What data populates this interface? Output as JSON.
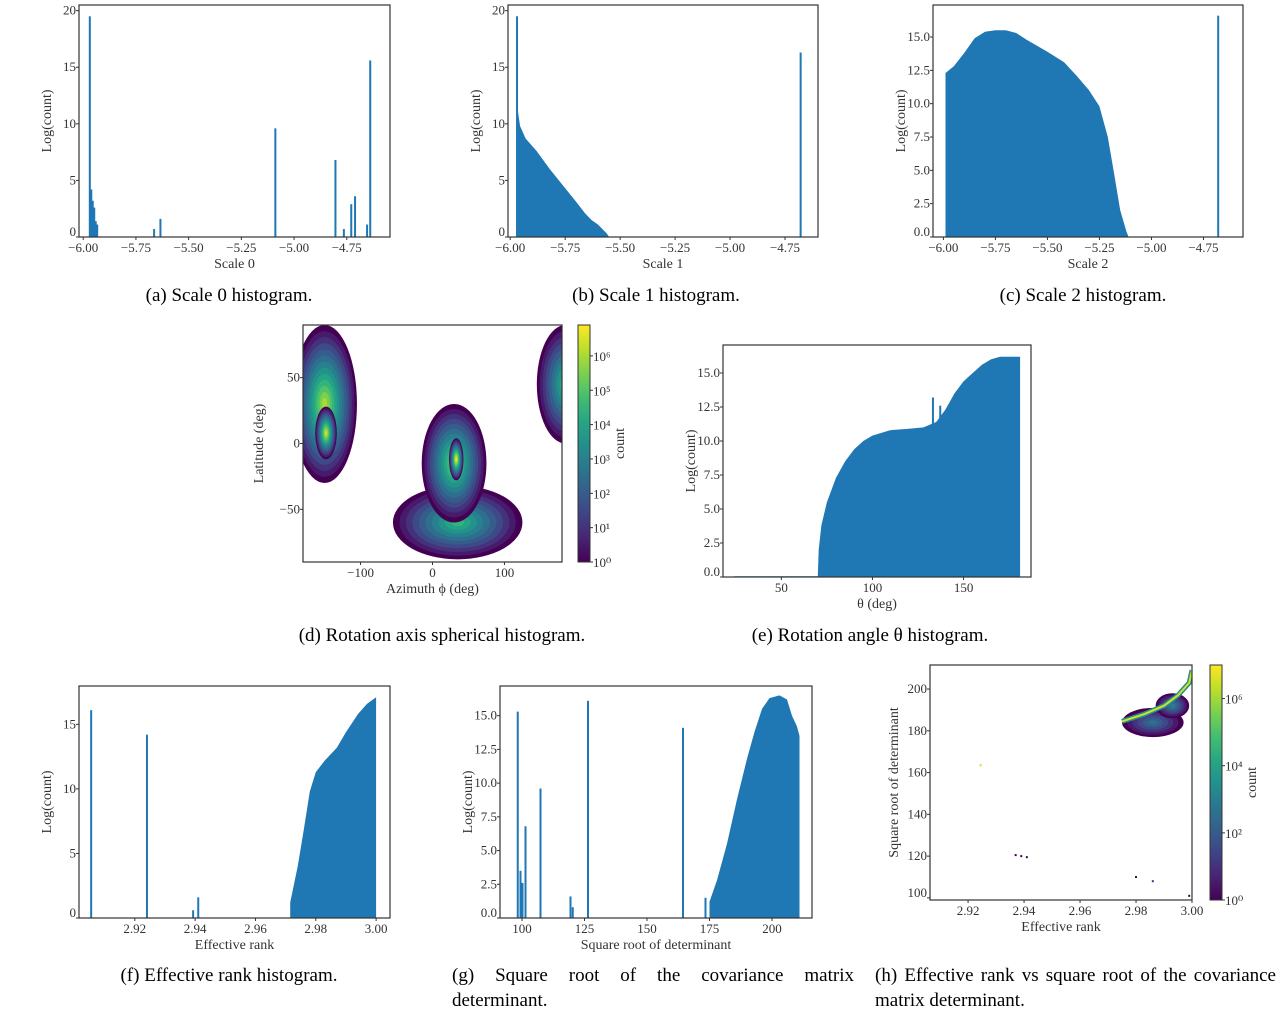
{
  "captions": {
    "a": "(a) Scale 0 histogram.",
    "b": "(b) Scale 1 histogram.",
    "c": "(c) Scale 2 histogram.",
    "d": "(d) Rotation axis spherical histogram.",
    "e": "(e) Rotation angle θ histogram.",
    "f": "(f) Effective rank histogram.",
    "g": "(g) Square root of the covariance matrix determinant.",
    "h": "(h) Effective rank vs square root of the covariance matrix determinant."
  },
  "colors": {
    "bar": "#1f77b4",
    "axis": "#333333",
    "colormap": "viridis"
  },
  "chart_data": [
    {
      "id": "a",
      "type": "bar",
      "xlabel": "Scale 0",
      "ylabel": "Log(count)",
      "xlim": [
        -6.02,
        -4.545
      ],
      "ylim": [
        0,
        20.5
      ],
      "xticks": [
        -6.0,
        -5.75,
        -5.5,
        -5.25,
        -5.0,
        -4.75
      ],
      "xtick_labels": [
        "−6.00",
        "−5.75",
        "−5.50",
        "−5.25",
        "−5.00",
        "−4.75"
      ],
      "yticks": [
        0,
        5,
        10,
        15,
        20
      ],
      "ytick_labels": [
        "0",
        "5",
        "10",
        "15",
        "20"
      ],
      "bar_width": 0.007,
      "bars": [
        [
          -5.97,
          19.5
        ],
        [
          -5.963,
          4.2
        ],
        [
          -5.956,
          3.2
        ],
        [
          -5.949,
          2.6
        ],
        [
          -5.942,
          1.4
        ],
        [
          -5.935,
          1.1
        ],
        [
          -5.665,
          0.7
        ],
        [
          -5.635,
          1.6
        ],
        [
          -5.09,
          9.6
        ],
        [
          -4.805,
          6.8
        ],
        [
          -4.765,
          0.7
        ],
        [
          -4.73,
          2.9
        ],
        [
          -4.712,
          3.6
        ],
        [
          -4.655,
          1.1
        ],
        [
          -4.64,
          15.6
        ]
      ]
    },
    {
      "id": "b",
      "type": "bar",
      "xlabel": "Scale 1",
      "ylabel": "Log(count)",
      "xlim": [
        -6.01,
        -4.6
      ],
      "ylim": [
        0,
        20.5
      ],
      "xticks": [
        -6.0,
        -5.75,
        -5.5,
        -5.25,
        -5.0,
        -4.75
      ],
      "xtick_labels": [
        "−6.00",
        "−5.75",
        "−5.50",
        "−5.25",
        "−5.00",
        "−4.75"
      ],
      "yticks": [
        0,
        5,
        10,
        15,
        20
      ],
      "ytick_labels": [
        "0",
        "5",
        "10",
        "15",
        "20"
      ],
      "bar_width": 0.007,
      "bars": [
        [
          -5.97,
          19.5
        ],
        [
          -4.68,
          16.3
        ]
      ],
      "area": [
        [
          -5.965,
          0
        ],
        [
          -5.965,
          11.1
        ],
        [
          -5.955,
          9.8
        ],
        [
          -5.93,
          8.7
        ],
        [
          -5.88,
          7.6
        ],
        [
          -5.82,
          6.0
        ],
        [
          -5.75,
          4.3
        ],
        [
          -5.7,
          3.1
        ],
        [
          -5.66,
          2.1
        ],
        [
          -5.63,
          1.5
        ],
        [
          -5.6,
          1.1
        ],
        [
          -5.575,
          0.6
        ],
        [
          -5.56,
          0.3
        ],
        [
          -5.55,
          0
        ]
      ]
    },
    {
      "id": "c",
      "type": "bar",
      "xlabel": "Scale 2",
      "ylabel": "Log(count)",
      "xlim": [
        -6.05,
        -4.56
      ],
      "ylim": [
        0,
        17.4
      ],
      "xticks": [
        -6.0,
        -5.75,
        -5.5,
        -5.25,
        -5.0,
        -4.75
      ],
      "xtick_labels": [
        "−6.00",
        "−5.75",
        "−5.50",
        "−5.25",
        "−5.00",
        "−4.75"
      ],
      "yticks": [
        0,
        2.5,
        5,
        7.5,
        10,
        12.5,
        15
      ],
      "ytick_labels": [
        "0.0",
        "2.5",
        "5.0",
        "7.5",
        "10.0",
        "12.5",
        "15.0"
      ],
      "bar_width": 0.008,
      "bars": [
        [
          -4.68,
          16.6
        ]
      ],
      "area": [
        [
          -5.99,
          0
        ],
        [
          -5.99,
          12.3
        ],
        [
          -5.95,
          12.8
        ],
        [
          -5.9,
          13.8
        ],
        [
          -5.85,
          14.9
        ],
        [
          -5.8,
          15.4
        ],
        [
          -5.75,
          15.5
        ],
        [
          -5.7,
          15.5
        ],
        [
          -5.65,
          15.3
        ],
        [
          -5.6,
          14.8
        ],
        [
          -5.5,
          13.9
        ],
        [
          -5.42,
          13.1
        ],
        [
          -5.36,
          12.1
        ],
        [
          -5.3,
          11.0
        ],
        [
          -5.25,
          9.8
        ],
        [
          -5.21,
          7.5
        ],
        [
          -5.18,
          4.8
        ],
        [
          -5.15,
          2.0
        ],
        [
          -5.12,
          0.4
        ],
        [
          -5.11,
          0
        ]
      ]
    },
    {
      "id": "d",
      "type": "heatmap",
      "xlabel": "Azimuth ϕ (deg)",
      "ylabel": "Latitude (deg)",
      "xlim": [
        -180,
        180
      ],
      "ylim": [
        -90,
        90
      ],
      "xticks": [
        -100,
        0,
        100
      ],
      "xtick_labels": [
        "−100",
        "0",
        "100"
      ],
      "yticks": [
        -50,
        0,
        50
      ],
      "ytick_labels": [
        "−50",
        "0",
        "50"
      ],
      "colorbar": {
        "label": "count",
        "scale": "log",
        "lim_log10": [
          0,
          6.9
        ],
        "ticks_log10": [
          0,
          1,
          2,
          3,
          4,
          5,
          6
        ],
        "tick_labels": [
          "10⁰",
          "10¹",
          "10²",
          "10³",
          "10⁴",
          "10⁵",
          "10⁶"
        ]
      },
      "regions": [
        {
          "cx": -150,
          "cy": 30,
          "rx": 45,
          "ry": 60,
          "peak_log10": 6.0
        },
        {
          "cx": -148,
          "cy": 8,
          "rx": 15,
          "ry": 20,
          "peak_log10": 6.4
        },
        {
          "cx": 35,
          "cy": -60,
          "rx": 90,
          "ry": 28,
          "peak_log10": 4.5
        },
        {
          "cx": 30,
          "cy": -15,
          "rx": 45,
          "ry": 45,
          "peak_log10": 5.5
        },
        {
          "cx": 33,
          "cy": -12,
          "rx": 10,
          "ry": 16,
          "peak_log10": 6.6
        },
        {
          "cx": 185,
          "cy": 45,
          "rx": 40,
          "ry": 45,
          "peak_log10": 4.5
        }
      ]
    },
    {
      "id": "e",
      "type": "bar",
      "xlabel": "θ (deg)",
      "ylabel": "Log(count)",
      "xlim": [
        18,
        187
      ],
      "ylim": [
        0,
        17.06
      ],
      "xticks": [
        50,
        100,
        150
      ],
      "xtick_labels": [
        "50",
        "100",
        "150"
      ],
      "yticks": [
        0,
        2.5,
        5,
        7.5,
        10,
        12.5,
        15
      ],
      "ytick_labels": [
        "0.0",
        "2.5",
        "5.0",
        "7.5",
        "10.0",
        "12.5",
        "15.0"
      ],
      "bar_width": 0.7,
      "bars": [
        [
          133,
          13.2
        ],
        [
          137,
          12.6
        ]
      ],
      "area": [
        [
          24,
          0
        ],
        [
          24,
          0.05
        ],
        [
          70,
          0.05
        ],
        [
          70.5,
          2.0
        ],
        [
          72,
          3.8
        ],
        [
          75,
          5.5
        ],
        [
          80,
          7.3
        ],
        [
          85,
          8.5
        ],
        [
          90,
          9.4
        ],
        [
          95,
          10.0
        ],
        [
          100,
          10.4
        ],
        [
          110,
          10.8
        ],
        [
          120,
          10.9
        ],
        [
          128,
          11.0
        ],
        [
          135,
          11.4
        ],
        [
          140,
          12.3
        ],
        [
          145,
          13.5
        ],
        [
          150,
          14.4
        ],
        [
          155,
          15.0
        ],
        [
          160,
          15.6
        ],
        [
          165,
          16.0
        ],
        [
          170,
          16.2
        ],
        [
          180,
          16.2
        ],
        [
          181,
          16.2
        ],
        [
          181,
          0
        ]
      ]
    },
    {
      "id": "f",
      "type": "bar",
      "xlabel": "Effective rank",
      "ylabel": "Log(count)",
      "xlim": [
        2.9015,
        3.0046
      ],
      "ylim": [
        0,
        17.97
      ],
      "xticks": [
        2.92,
        2.94,
        2.96,
        2.98,
        3.0
      ],
      "xtick_labels": [
        "2.92",
        "2.94",
        "2.96",
        "2.98",
        "3.00"
      ],
      "yticks": [
        0,
        5,
        10,
        15
      ],
      "ytick_labels": [
        "0",
        "5",
        "10",
        "15"
      ],
      "bar_width": 0.0006,
      "bars": [
        [
          2.9055,
          16.1
        ],
        [
          2.924,
          14.2
        ],
        [
          2.9393,
          0.6
        ],
        [
          2.941,
          1.6
        ]
      ],
      "area": [
        [
          2.9715,
          0
        ],
        [
          2.9715,
          1.2
        ],
        [
          2.974,
          4.0
        ],
        [
          2.976,
          6.8
        ],
        [
          2.978,
          9.8
        ],
        [
          2.98,
          11.3
        ],
        [
          2.983,
          12.2
        ],
        [
          2.987,
          13.2
        ],
        [
          2.99,
          14.4
        ],
        [
          2.994,
          15.8
        ],
        [
          2.997,
          16.6
        ],
        [
          3.0,
          17.1
        ],
        [
          3.0,
          0
        ]
      ]
    },
    {
      "id": "g",
      "type": "bar",
      "xlabel": "Square root of determinant",
      "ylabel": "Log(count)",
      "xlim": [
        91.2,
        216
      ],
      "ylim": [
        0,
        17.2
      ],
      "xticks": [
        100,
        125,
        150,
        175,
        200
      ],
      "xtick_labels": [
        "100",
        "125",
        "150",
        "175",
        "200"
      ],
      "yticks": [
        0,
        2.5,
        5,
        7.5,
        10,
        12.5,
        15
      ],
      "ytick_labels": [
        "0.0",
        "2.5",
        "5.0",
        "7.5",
        "10.0",
        "12.5",
        "15.0"
      ],
      "bar_width": 0.6,
      "bars": [
        [
          98.2,
          15.3
        ],
        [
          99.3,
          3.5
        ],
        [
          100.1,
          2.6
        ],
        [
          101.3,
          6.8
        ],
        [
          107.3,
          9.6
        ],
        [
          119.3,
          1.6
        ],
        [
          120.2,
          0.8
        ],
        [
          126.3,
          16.1
        ],
        [
          164.3,
          14.1
        ],
        [
          173.3,
          1.5
        ]
      ],
      "area": [
        [
          175,
          0
        ],
        [
          175,
          1.2
        ],
        [
          178,
          2.8
        ],
        [
          182,
          5.5
        ],
        [
          186,
          8.8
        ],
        [
          190,
          11.8
        ],
        [
          193,
          13.8
        ],
        [
          196,
          15.5
        ],
        [
          199,
          16.3
        ],
        [
          203,
          16.5
        ],
        [
          206,
          16.2
        ],
        [
          208,
          15.0
        ],
        [
          210,
          14.2
        ],
        [
          211,
          13.5
        ],
        [
          211,
          0
        ]
      ]
    },
    {
      "id": "h",
      "type": "heatmap",
      "xlabel": "Effective rank",
      "ylabel": "Square root of determinant",
      "xlim": [
        2.9064,
        3.0
      ],
      "ylim": [
        99,
        211.5
      ],
      "xticks": [
        2.92,
        2.94,
        2.96,
        2.98,
        3.0
      ],
      "xtick_labels": [
        "2.92",
        "2.94",
        "2.96",
        "2.98",
        "3.00"
      ],
      "yticks": [
        100,
        120,
        140,
        160,
        180,
        200
      ],
      "ytick_labels": [
        "100",
        "120",
        "140",
        "160",
        "180",
        "200"
      ],
      "colorbar": {
        "label": "count",
        "scale": "log",
        "lim_log10": [
          0,
          7
        ],
        "ticks_log10": [
          0,
          2,
          4,
          6
        ],
        "tick_labels": [
          "10⁰",
          "10²",
          "10⁴",
          "10⁶"
        ]
      },
      "regions": [
        {
          "cx": 2.986,
          "cy": 184,
          "rx": 0.011,
          "ry": 7,
          "peak_log10": 2.5
        },
        {
          "cx": 2.993,
          "cy": 192,
          "rx": 0.006,
          "ry": 6,
          "peak_log10": 3.0
        }
      ],
      "ridge": {
        "points": [
          [
            2.975,
            184.5
          ],
          [
            2.983,
            188
          ],
          [
            2.99,
            192
          ],
          [
            2.995,
            197
          ],
          [
            2.999,
            203
          ],
          [
            3.0,
            209
          ]
        ],
        "peak_log10": 6.5
      },
      "points": [
        [
          2.9245,
          163.5,
          6.5
        ],
        [
          2.937,
          120.5,
          0
        ],
        [
          2.939,
          120,
          0
        ],
        [
          2.941,
          119.5,
          0
        ],
        [
          2.98,
          110,
          0
        ],
        [
          2.986,
          108,
          1
        ],
        [
          2.999,
          101,
          0
        ]
      ]
    }
  ]
}
